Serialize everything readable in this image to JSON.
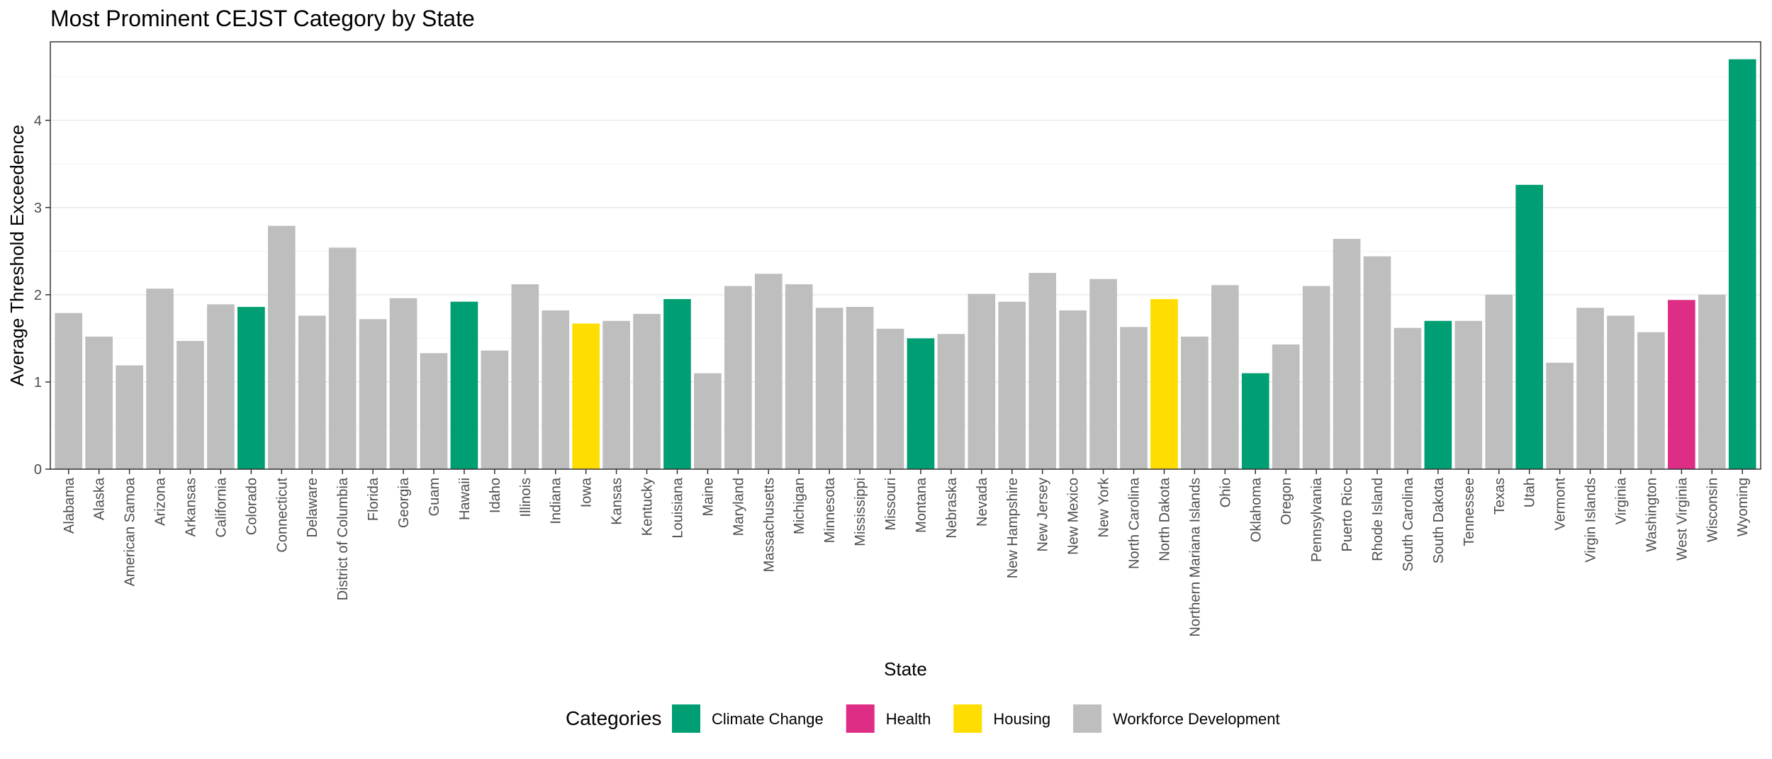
{
  "chart_data": {
    "type": "bar",
    "title": "Most Prominent CEJST Category by State",
    "xlabel": "State",
    "ylabel": "Average Threshold Exceedence",
    "ylim": [
      0,
      4.9
    ],
    "yticks": [
      0,
      1,
      2,
      3,
      4
    ],
    "grid": true,
    "legend_position": "bottom",
    "legend": {
      "title": "Categories",
      "entries": [
        {
          "name": "Climate Change",
          "color": "#009E73"
        },
        {
          "name": "Health",
          "color": "#DE2D85"
        },
        {
          "name": "Housing",
          "color": "#FFDD00"
        },
        {
          "name": "Workforce Development",
          "color": "#BEBEBE"
        }
      ]
    },
    "categories": [
      "Alabama",
      "Alaska",
      "American Samoa",
      "Arizona",
      "Arkansas",
      "California",
      "Colorado",
      "Connecticut",
      "Delaware",
      "District of Columbia",
      "Florida",
      "Georgia",
      "Guam",
      "Hawaii",
      "Idaho",
      "Illinois",
      "Indiana",
      "Iowa",
      "Kansas",
      "Kentucky",
      "Louisiana",
      "Maine",
      "Maryland",
      "Massachusetts",
      "Michigan",
      "Minnesota",
      "Mississippi",
      "Missouri",
      "Montana",
      "Nebraska",
      "Nevada",
      "New Hampshire",
      "New Jersey",
      "New Mexico",
      "New York",
      "North Carolina",
      "North Dakota",
      "Northern Mariana Islands",
      "Ohio",
      "Oklahoma",
      "Oregon",
      "Pennsylvania",
      "Puerto Rico",
      "Rhode Island",
      "South Carolina",
      "South Dakota",
      "Tennessee",
      "Texas",
      "Utah",
      "Vermont",
      "Virgin Islands",
      "Virginia",
      "Washington",
      "West Virginia",
      "Wisconsin",
      "Wyoming"
    ],
    "values": [
      1.79,
      1.52,
      1.19,
      2.07,
      1.47,
      1.89,
      1.86,
      2.79,
      1.76,
      2.54,
      1.72,
      1.96,
      1.33,
      1.92,
      1.36,
      2.12,
      1.82,
      1.67,
      1.7,
      1.78,
      1.95,
      1.1,
      2.1,
      2.24,
      2.12,
      1.85,
      1.86,
      1.61,
      1.5,
      1.55,
      2.01,
      1.92,
      2.25,
      1.82,
      2.18,
      1.63,
      1.95,
      1.52,
      2.11,
      1.1,
      1.43,
      2.1,
      2.64,
      2.44,
      1.62,
      1.7,
      1.7,
      2.0,
      3.26,
      1.22,
      1.85,
      1.76,
      1.57,
      1.94,
      2.0,
      4.7
    ],
    "category_of_bar": [
      "Workforce Development",
      "Workforce Development",
      "Workforce Development",
      "Workforce Development",
      "Workforce Development",
      "Workforce Development",
      "Climate Change",
      "Workforce Development",
      "Workforce Development",
      "Workforce Development",
      "Workforce Development",
      "Workforce Development",
      "Workforce Development",
      "Climate Change",
      "Workforce Development",
      "Workforce Development",
      "Workforce Development",
      "Housing",
      "Workforce Development",
      "Workforce Development",
      "Climate Change",
      "Workforce Development",
      "Workforce Development",
      "Workforce Development",
      "Workforce Development",
      "Workforce Development",
      "Workforce Development",
      "Workforce Development",
      "Climate Change",
      "Workforce Development",
      "Workforce Development",
      "Workforce Development",
      "Workforce Development",
      "Workforce Development",
      "Workforce Development",
      "Workforce Development",
      "Housing",
      "Workforce Development",
      "Workforce Development",
      "Climate Change",
      "Workforce Development",
      "Workforce Development",
      "Workforce Development",
      "Workforce Development",
      "Workforce Development",
      "Climate Change",
      "Workforce Development",
      "Workforce Development",
      "Climate Change",
      "Workforce Development",
      "Workforce Development",
      "Workforce Development",
      "Workforce Development",
      "Health",
      "Workforce Development",
      "Climate Change"
    ]
  }
}
